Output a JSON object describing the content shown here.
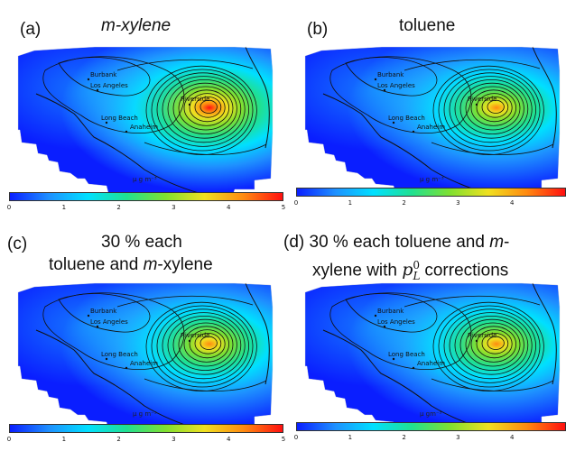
{
  "panels": [
    {
      "label": "(a)",
      "species": "m-xylene",
      "unit": "μ g m⁻³",
      "ticks": [
        "0",
        "1",
        "2",
        "3",
        "4",
        "5"
      ],
      "colorbar_range": [
        0,
        5
      ],
      "peak_level": 1.0
    },
    {
      "label": "(b)",
      "species": "toluene",
      "unit": "μ g m⁻³",
      "ticks": [
        "0",
        "1",
        "2",
        "3",
        "4"
      ],
      "colorbar_range": [
        0,
        5
      ],
      "peak_level": 0.72
    },
    {
      "label": "(c)",
      "line1": "30 % each",
      "line2_pre": "toluene and ",
      "line2_em": "m",
      "line2_post": "-xylene",
      "unit": "μ g m⁻³",
      "ticks": [
        "0",
        "1",
        "2",
        "3",
        "4",
        "5"
      ],
      "colorbar_range": [
        0,
        5
      ],
      "peak_level": 0.75
    },
    {
      "label": "(d)",
      "line1_pre": "30 % each toluene and ",
      "line1_em": "m",
      "line1_post": "-",
      "line2_pre": "xylene with ",
      "line2_post": " corrections",
      "unit": "μ gm⁻³",
      "ticks": [
        "0",
        "1",
        "2",
        "3",
        "4"
      ],
      "colorbar_range": [
        0,
        5
      ],
      "peak_level": 0.75
    }
  ],
  "cities": [
    "Burbank",
    "Los Angeles",
    "Riverside",
    "Long Beach",
    "Anaheim"
  ],
  "colorscale": [
    "#0a1eff",
    "#1e90ff",
    "#00e0ff",
    "#20e090",
    "#80e030",
    "#f0e020",
    "#ff8a10",
    "#ff1010"
  ]
}
